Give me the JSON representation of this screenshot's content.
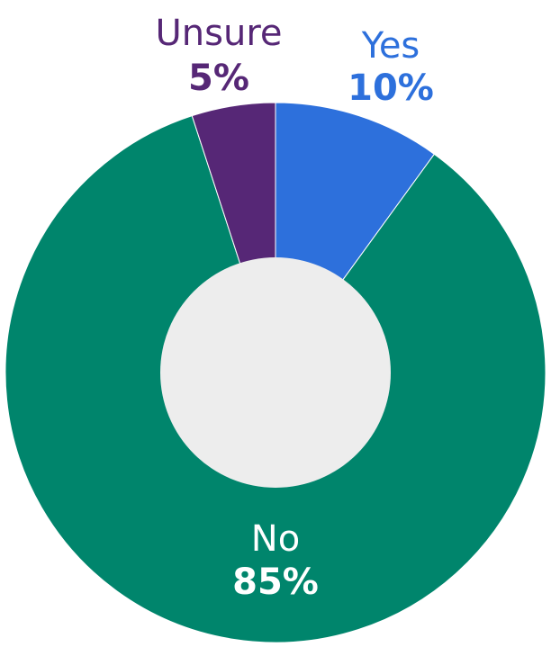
{
  "chart_data": {
    "type": "pie",
    "style": "donut",
    "title": "",
    "categories": [
      "Yes",
      "No",
      "Unsure"
    ],
    "values": [
      10,
      85,
      5
    ],
    "value_labels": [
      "10%",
      "85%",
      "5%"
    ],
    "colors": [
      "#2D70DC",
      "#00856C",
      "#562776"
    ],
    "label_colors": [
      "#2D70DC",
      "#FFFFFF",
      "#562776"
    ],
    "hole_color": "#EDEDED",
    "start": "12 o'clock",
    "direction": "clockwise"
  }
}
